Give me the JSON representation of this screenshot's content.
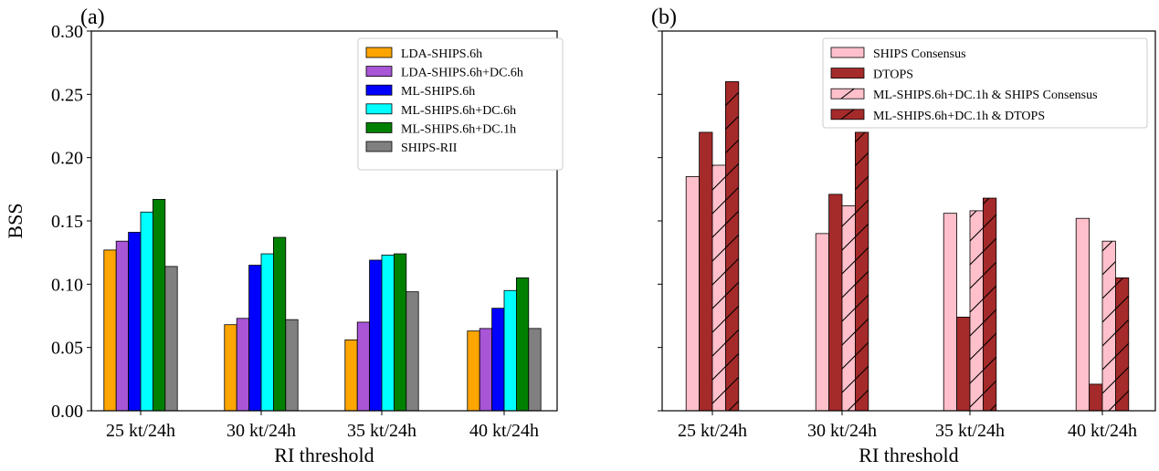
{
  "chart_data": [
    {
      "type": "bar",
      "panel_label": "(a)",
      "xlabel": "RI threshold",
      "ylabel": "BSS",
      "ylim": [
        0,
        0.3
      ],
      "yticks": [
        "0.00",
        "0.05",
        "0.10",
        "0.15",
        "0.20",
        "0.25",
        "0.30"
      ],
      "categories": [
        "25 kt/24h",
        "30 kt/24h",
        "35 kt/24h",
        "40 kt/24h"
      ],
      "legend_position": "top-right",
      "grid": false,
      "series": [
        {
          "name": "LDA-SHIPS.6h",
          "color": "#ffa500",
          "hatch": false,
          "values": [
            0.127,
            0.068,
            0.056,
            0.063
          ]
        },
        {
          "name": "LDA-SHIPS.6h+DC.6h",
          "color": "#a855d6",
          "hatch": false,
          "values": [
            0.134,
            0.073,
            0.07,
            0.065
          ]
        },
        {
          "name": "ML-SHIPS.6h",
          "color": "#0000ff",
          "hatch": false,
          "values": [
            0.141,
            0.115,
            0.119,
            0.081
          ]
        },
        {
          "name": "ML-SHIPS.6h+DC.6h",
          "color": "#00ffff",
          "hatch": false,
          "values": [
            0.157,
            0.124,
            0.123,
            0.095
          ]
        },
        {
          "name": "ML-SHIPS.6h+DC.1h",
          "color": "#008000",
          "hatch": false,
          "values": [
            0.167,
            0.137,
            0.124,
            0.105
          ]
        },
        {
          "name": "SHIPS-RII",
          "color": "#808080",
          "hatch": false,
          "values": [
            0.114,
            0.072,
            0.094,
            0.065
          ]
        }
      ]
    },
    {
      "type": "bar",
      "panel_label": "(b)",
      "xlabel": "RI threshold",
      "ylabel": "",
      "ylim": [
        0,
        0.3
      ],
      "categories": [
        "25 kt/24h",
        "30 kt/24h",
        "35 kt/24h",
        "40 kt/24h"
      ],
      "legend_position": "top-right",
      "grid": false,
      "series": [
        {
          "name": "SHIPS Consensus",
          "color": "#ffc0cb",
          "hatch": false,
          "values": [
            0.185,
            0.14,
            0.156,
            0.152
          ]
        },
        {
          "name": "DTOPS",
          "color": "#a52a2a",
          "hatch": false,
          "values": [
            0.22,
            0.171,
            0.074,
            0.021
          ]
        },
        {
          "name": "ML-SHIPS.6h+DC.1h & SHIPS Consensus",
          "color": "#ffc0cb",
          "hatch": true,
          "values": [
            0.194,
            0.162,
            0.158,
            0.134
          ]
        },
        {
          "name": "ML-SHIPS.6h+DC.1h & DTOPS",
          "color": "#a52a2a",
          "hatch": true,
          "values": [
            0.26,
            0.22,
            0.168,
            0.105
          ]
        }
      ]
    }
  ]
}
